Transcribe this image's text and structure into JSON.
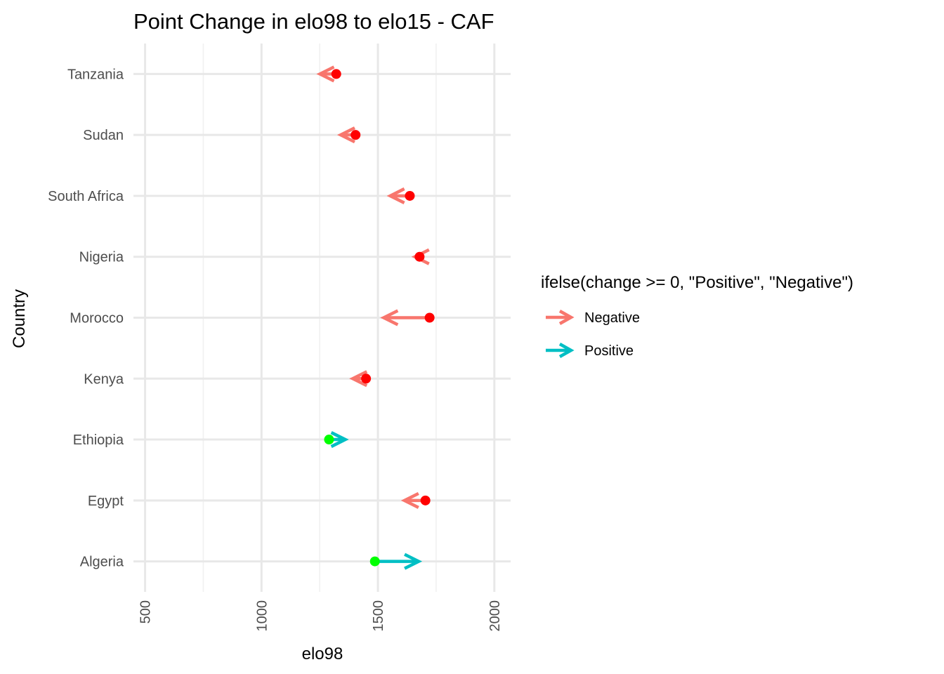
{
  "chart_data": {
    "type": "arrow-dot",
    "title": "Point Change in elo98 to elo15 - CAF",
    "xlabel": "elo98",
    "ylabel": "Country",
    "xlim": [
      450,
      2070
    ],
    "x_ticks": [
      500,
      1000,
      1500,
      2000
    ],
    "x_minor_ticks": [
      750,
      1250,
      1750
    ],
    "x_tick_labels": [
      "500",
      "1000",
      "1500",
      "2000"
    ],
    "grid": true,
    "legend": {
      "title": "ifelse(change >= 0, \"Positive\", \"Negative\")",
      "position": "right",
      "entries": [
        {
          "label": "Negative",
          "color": "#F8766D"
        },
        {
          "label": "Positive",
          "color": "#00BFC4"
        }
      ]
    },
    "colors": {
      "negative_arrow": "#F8766D",
      "positive_arrow": "#00BFC4",
      "negative_point": "#FF0000",
      "positive_point": "#00FF00"
    },
    "categories": [
      "Algeria",
      "Egypt",
      "Ethiopia",
      "Kenya",
      "Morocco",
      "Nigeria",
      "South Africa",
      "Sudan",
      "Tanzania"
    ],
    "series": [
      {
        "country": "Algeria",
        "elo98": 1487,
        "elo15": 1675,
        "direction": "Positive"
      },
      {
        "country": "Egypt",
        "elo98": 1704,
        "elo15": 1614,
        "direction": "Negative"
      },
      {
        "country": "Ethiopia",
        "elo98": 1290,
        "elo15": 1360,
        "direction": "Positive"
      },
      {
        "country": "Kenya",
        "elo98": 1449,
        "elo15": 1392,
        "direction": "Negative"
      },
      {
        "country": "Morocco",
        "elo98": 1722,
        "elo15": 1525,
        "direction": "Negative"
      },
      {
        "country": "Nigeria",
        "elo98": 1679,
        "elo15": 1659,
        "direction": "Negative"
      },
      {
        "country": "South Africa",
        "elo98": 1637,
        "elo15": 1553,
        "direction": "Negative"
      },
      {
        "country": "Sudan",
        "elo98": 1404,
        "elo15": 1340,
        "direction": "Negative"
      },
      {
        "country": "Tanzania",
        "elo98": 1321,
        "elo15": 1251,
        "direction": "Negative"
      }
    ]
  }
}
